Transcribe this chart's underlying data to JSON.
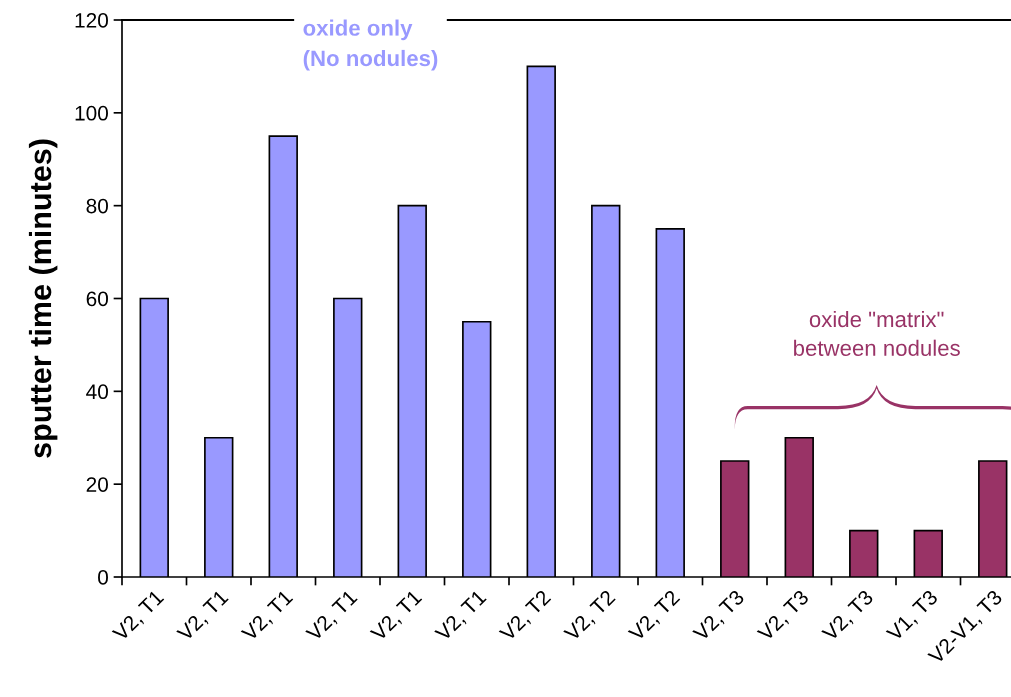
{
  "chart_data": {
    "type": "bar",
    "ylabel": "sputter time (minutes)",
    "categories": [
      "V2, T1",
      "V2, T1",
      "V2, T1",
      "V2, T1",
      "V2, T1",
      "V2, T1",
      "V2, T2",
      "V2, T2",
      "V2, T2",
      "V2, T3",
      "V2, T3",
      "V2, T3",
      "V1, T3",
      "V2-V1, T3"
    ],
    "values": [
      60,
      30,
      95,
      60,
      80,
      55,
      110,
      80,
      75,
      25,
      30,
      10,
      10,
      25
    ],
    "colors": [
      "#9999ff",
      "#9999ff",
      "#9999ff",
      "#9999ff",
      "#9999ff",
      "#9999ff",
      "#9999ff",
      "#9999ff",
      "#9999ff",
      "#993366",
      "#993366",
      "#993366",
      "#993366",
      "#993366"
    ],
    "ylim": [
      0,
      120
    ],
    "yticks": [
      0,
      20,
      40,
      60,
      80,
      100,
      120
    ],
    "ref_lines": [
      {
        "axis": "y",
        "value": 120,
        "color": "#000000"
      }
    ],
    "annotations": [
      "oxide only\n(No nodules)",
      "oxide \"matrix\"\nbetween nodules"
    ],
    "grid": false,
    "legend": false
  }
}
